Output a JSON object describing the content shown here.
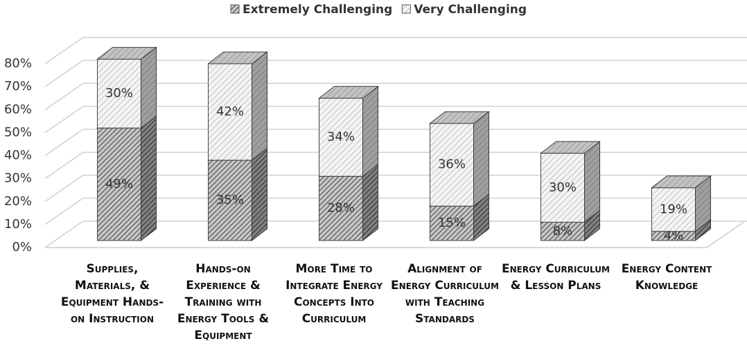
{
  "chart_data": {
    "type": "bar3d_stacked",
    "categories": [
      "Supplies, Materials, & Equipment Hands-on Instruction",
      "Hands-on Experience & Training with Energy Tools & Equipment",
      "More Time to Integrate Energy Concepts Into Curriculum",
      "Alignment of Energy Curriculum with Teaching Standards",
      "Energy Curriculum & Lesson Plans",
      "Energy Content Knowledge"
    ],
    "series": [
      {
        "name": "Extremely Challenging",
        "color": "#555555",
        "values": [
          49,
          35,
          28,
          15,
          8,
          4
        ],
        "value_labels": [
          "49%",
          "35%",
          "28%",
          "15%",
          "8%",
          "4%"
        ]
      },
      {
        "name": "Very Challenging",
        "color": "#b0b0b0",
        "values": [
          30,
          42,
          34,
          36,
          30,
          19
        ],
        "value_labels": [
          "30%",
          "42%",
          "34%",
          "36%",
          "30%",
          "19%"
        ]
      }
    ],
    "ylim": [
      0,
      80
    ],
    "yticks": [
      {
        "value": 0,
        "label": "0%"
      },
      {
        "value": 10,
        "label": "10%"
      },
      {
        "value": 20,
        "label": "20%"
      },
      {
        "value": 30,
        "label": "30%"
      },
      {
        "value": 40,
        "label": "40%"
      },
      {
        "value": 50,
        "label": "50%"
      },
      {
        "value": 60,
        "label": "60%"
      },
      {
        "value": 70,
        "label": "70%"
      },
      {
        "value": 80,
        "label": "80%"
      }
    ],
    "grid": true,
    "legend": "top"
  }
}
